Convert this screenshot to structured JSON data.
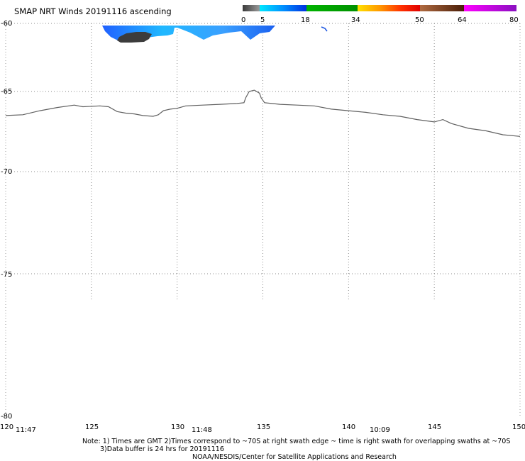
{
  "title": "SMAP NRT Winds 20191116 ascending",
  "colorbar": {
    "labels": [
      "0",
      "5",
      "18",
      "34",
      "50",
      "64",
      "80"
    ],
    "segments": [
      {
        "from": 0,
        "to": 5,
        "color": "#555555",
        "style": "gray-gradient"
      },
      {
        "from": 5,
        "to": 18,
        "color": "#0050ff",
        "style": "cyan-blue"
      },
      {
        "from": 18,
        "to": 34,
        "color": "#00aa00",
        "style": "green"
      },
      {
        "from": 34,
        "to": 50,
        "color": "#ff0000",
        "style": "yellow-red"
      },
      {
        "from": 50,
        "to": 64,
        "color": "#7a3a10",
        "style": "brown"
      },
      {
        "from": 64,
        "to": 80,
        "color": "#ff00ff",
        "style": "magenta-purple"
      }
    ]
  },
  "map": {
    "lon_min": 120,
    "lon_max": 150,
    "lat_max": -60,
    "lat_min": -80,
    "lat_labels": [
      "-60",
      "-65",
      "-70",
      "-75",
      "-80"
    ],
    "lon_labels": [
      "120",
      "125",
      "130",
      "135",
      "140",
      "145",
      "150"
    ],
    "grid_lats": [
      -60,
      -65,
      -70,
      -75
    ],
    "grid_lons": [
      125,
      130,
      135,
      140,
      145
    ],
    "grid_extent_lat": -75.9,
    "coastline": [
      [
        120,
        -66.5
      ],
      [
        121,
        -66.45
      ],
      [
        122,
        -66.2
      ],
      [
        123,
        -66.0
      ],
      [
        124,
        -65.85
      ],
      [
        124.5,
        -65.95
      ],
      [
        125.5,
        -65.9
      ],
      [
        126,
        -65.95
      ],
      [
        126.5,
        -66.25
      ],
      [
        127,
        -66.35
      ],
      [
        127.5,
        -66.4
      ],
      [
        128,
        -66.5
      ],
      [
        128.6,
        -66.55
      ],
      [
        128.9,
        -66.45
      ],
      [
        129.2,
        -66.2
      ],
      [
        129.6,
        -66.1
      ],
      [
        130,
        -66.05
      ],
      [
        130.5,
        -65.9
      ],
      [
        131.5,
        -65.85
      ],
      [
        132.5,
        -65.8
      ],
      [
        133.5,
        -65.75
      ],
      [
        133.9,
        -65.7
      ],
      [
        134,
        -65.4
      ],
      [
        134.2,
        -65.0
      ],
      [
        134.5,
        -64.9
      ],
      [
        134.8,
        -65.1
      ],
      [
        134.9,
        -65.4
      ],
      [
        135.1,
        -65.7
      ],
      [
        136,
        -65.8
      ],
      [
        137,
        -65.85
      ],
      [
        138,
        -65.9
      ],
      [
        139,
        -66.1
      ],
      [
        140,
        -66.2
      ],
      [
        141,
        -66.3
      ],
      [
        142,
        -66.45
      ],
      [
        143,
        -66.55
      ],
      [
        144,
        -66.75
      ],
      [
        145,
        -66.9
      ],
      [
        145.5,
        -66.75
      ],
      [
        146,
        -67.0
      ],
      [
        147,
        -67.3
      ],
      [
        148,
        -67.45
      ],
      [
        149,
        -67.7
      ],
      [
        150,
        -67.8
      ]
    ],
    "coast_color": "#606060",
    "wind_swath": [
      {
        "lon": [
          125.7,
          129.8
        ],
        "lat": [
          -60.0,
          -61.1
        ],
        "color": "#2a7ef0",
        "label": "swath"
      }
    ]
  },
  "times": {
    "t1": "11:47",
    "t2": "11:48",
    "t3": "10:09"
  },
  "notes": {
    "line1": "Note: 1) Times are GMT 2)Times correspond to ~70S at right swath edge ~ time is right swath for overlapping swaths at ~70S",
    "line2": "3)Data buffer is 24 hrs for 20191116",
    "line3": "NOAA/NESDIS/Center for Satellite Applications and Research"
  }
}
